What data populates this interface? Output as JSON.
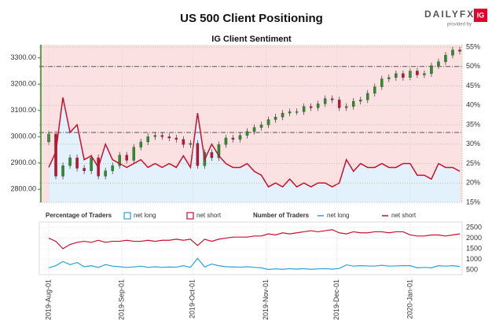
{
  "chart_data": [
    {
      "type": "candlestick",
      "title": "US 500 Client Positioning",
      "subtitle": "IG Client Sentiment",
      "logo": {
        "text": "DAILYFX",
        "badge": "IG",
        "tagline": "provided by"
      },
      "xlim": [
        "2019-07-28",
        "2020-01-23"
      ],
      "x": [
        "2019-08-01",
        "2019-08-04",
        "2019-08-07",
        "2019-08-10",
        "2019-08-13",
        "2019-08-16",
        "2019-08-19",
        "2019-08-22",
        "2019-08-25",
        "2019-08-28",
        "2019-08-31",
        "2019-09-03",
        "2019-09-06",
        "2019-09-09",
        "2019-09-12",
        "2019-09-15",
        "2019-09-18",
        "2019-09-21",
        "2019-09-24",
        "2019-09-27",
        "2019-09-30",
        "2019-10-03",
        "2019-10-06",
        "2019-10-09",
        "2019-10-12",
        "2019-10-15",
        "2019-10-18",
        "2019-10-21",
        "2019-10-24",
        "2019-10-27",
        "2019-10-30",
        "2019-11-02",
        "2019-11-05",
        "2019-11-08",
        "2019-11-11",
        "2019-11-14",
        "2019-11-17",
        "2019-11-20",
        "2019-11-23",
        "2019-11-26",
        "2019-11-29",
        "2019-12-02",
        "2019-12-05",
        "2019-12-08",
        "2019-12-11",
        "2019-12-14",
        "2019-12-17",
        "2019-12-20",
        "2019-12-23",
        "2019-12-26",
        "2019-12-29",
        "2020-01-01",
        "2020-01-04",
        "2020-01-07",
        "2020-01-10",
        "2020-01-13",
        "2020-01-16",
        "2020-01-19",
        "2020-01-22"
      ],
      "open": [
        2980,
        3010,
        2850,
        2890,
        2920,
        2880,
        2870,
        2920,
        2850,
        2870,
        2890,
        2930,
        2910,
        2960,
        2980,
        3000,
        3005,
        3000,
        2995,
        2990,
        2970,
        2975,
        2890,
        2940,
        2920,
        2970,
        2995,
        2990,
        3005,
        3020,
        3035,
        3045,
        3065,
        3075,
        3090,
        3095,
        3095,
        3115,
        3110,
        3125,
        3145,
        3140,
        3110,
        3115,
        3135,
        3140,
        3165,
        3190,
        3220,
        3225,
        3240,
        3225,
        3250,
        3235,
        3240,
        3270,
        3285,
        3310,
        3330
      ],
      "high": [
        3022,
        3022,
        2902,
        2932,
        2932,
        2892,
        2932,
        2932,
        2882,
        2902,
        2942,
        2942,
        2972,
        2992,
        3012,
        3017,
        3017,
        3012,
        3007,
        3002,
        2987,
        2987,
        2952,
        2952,
        2982,
        3007,
        3007,
        3017,
        3032,
        3047,
        3057,
        3077,
        3087,
        3102,
        3107,
        3107,
        3127,
        3127,
        3137,
        3157,
        3157,
        3152,
        3127,
        3147,
        3152,
        3177,
        3202,
        3232,
        3237,
        3252,
        3252,
        3262,
        3262,
        3252,
        3282,
        3297,
        3322,
        3342,
        3342
      ],
      "low": [
        2968,
        2838,
        2838,
        2878,
        2868,
        2858,
        2858,
        2838,
        2838,
        2858,
        2878,
        2898,
        2898,
        2948,
        2968,
        2988,
        2988,
        2983,
        2978,
        2958,
        2958,
        2878,
        2878,
        2908,
        2908,
        2958,
        2978,
        2978,
        2993,
        3008,
        3023,
        3033,
        3053,
        3063,
        3078,
        3083,
        3083,
        3098,
        3098,
        3113,
        3128,
        3098,
        3098,
        3103,
        3123,
        3128,
        3153,
        3178,
        3208,
        3213,
        3213,
        3213,
        3223,
        3223,
        3228,
        3258,
        3273,
        3298,
        3313
      ],
      "close": [
        3010,
        2850,
        2890,
        2920,
        2880,
        2870,
        2920,
        2850,
        2870,
        2890,
        2930,
        2910,
        2960,
        2980,
        3000,
        3005,
        3000,
        2995,
        2990,
        2970,
        2975,
        2890,
        2940,
        2920,
        2970,
        2995,
        2990,
        3005,
        3020,
        3035,
        3045,
        3065,
        3075,
        3090,
        3095,
        3095,
        3115,
        3110,
        3125,
        3145,
        3140,
        3110,
        3115,
        3135,
        3140,
        3165,
        3190,
        3220,
        3225,
        3240,
        3225,
        3250,
        3235,
        3240,
        3270,
        3285,
        3310,
        3330,
        3325
      ],
      "up_color": "#2a8f2a",
      "down_color": "#c8102e",
      "sentiment": {
        "color": "#c8102e",
        "values": [
          24,
          28,
          42,
          33,
          35,
          26,
          27,
          24,
          30,
          26,
          25,
          24,
          25,
          26,
          24,
          25,
          24,
          25,
          24,
          27,
          24,
          38,
          26,
          30,
          27,
          25,
          24,
          24,
          25,
          23,
          22,
          19,
          20,
          19,
          21,
          19,
          20,
          19,
          20,
          20,
          19,
          20,
          26,
          23,
          25,
          24,
          24,
          25,
          24,
          24,
          25,
          25,
          22,
          22,
          21,
          25,
          24,
          24,
          23
        ],
        "axis": "y2"
      },
      "areas": [
        {
          "name": "net long",
          "color": "#29a3d6",
          "fill": "#e2f1fb"
        },
        {
          "name": "net short",
          "color": "#c8102e",
          "fill": "#fbe1e1"
        }
      ],
      "reference_lines": [
        50,
        33
      ],
      "ylim": [
        2750,
        3350
      ],
      "yticks": [
        {
          "value": 2800,
          "label": "2800.00"
        },
        {
          "value": 2900,
          "label": "2900.00"
        },
        {
          "value": 3000,
          "label": "3000.00"
        },
        {
          "value": 3100,
          "label": "3100.00"
        },
        {
          "value": 3200,
          "label": "3200.00"
        },
        {
          "value": 3300,
          "label": "3300.00"
        }
      ],
      "y2lim": [
        15,
        55.6
      ],
      "y2ticks": [
        {
          "value": 15,
          "label": "15%"
        },
        {
          "value": 20,
          "label": "20%"
        },
        {
          "value": 25,
          "label": "25%"
        },
        {
          "value": 30,
          "label": "30%"
        },
        {
          "value": 35,
          "label": "35%"
        },
        {
          "value": 40,
          "label": "40%"
        },
        {
          "value": 45,
          "label": "45%"
        },
        {
          "value": 50,
          "label": "50%"
        },
        {
          "value": 55,
          "label": "55%"
        }
      ],
      "grid": true
    },
    {
      "type": "line",
      "legend_titles": {
        "percentage": "Percentage of Traders",
        "number": "Number of Traders"
      },
      "series": [
        {
          "name": "net long",
          "color": "#29a3d6",
          "values": [
            600,
            700,
            900,
            750,
            850,
            650,
            700,
            620,
            750,
            680,
            650,
            620,
            640,
            680,
            620,
            650,
            620,
            640,
            630,
            700,
            620,
            1050,
            640,
            780,
            700,
            650,
            640,
            630,
            650,
            620,
            600,
            520,
            550,
            530,
            560,
            540,
            560,
            530,
            550,
            560,
            540,
            570,
            740,
            680,
            700,
            690,
            680,
            720,
            680,
            690,
            700,
            700,
            600,
            620,
            600,
            700,
            680,
            700,
            660
          ]
        },
        {
          "name": "net short",
          "color": "#c8102e",
          "values": [
            2000,
            1850,
            1500,
            1700,
            1800,
            1850,
            1800,
            1900,
            1800,
            1850,
            1850,
            1900,
            1850,
            1850,
            1900,
            1850,
            1900,
            1900,
            1950,
            1900,
            1950,
            1650,
            1950,
            1850,
            1950,
            2000,
            2050,
            2050,
            2050,
            2100,
            2100,
            2200,
            2150,
            2250,
            2200,
            2250,
            2300,
            2350,
            2300,
            2350,
            2400,
            2250,
            2200,
            2300,
            2250,
            2250,
            2300,
            2300,
            2250,
            2300,
            2300,
            2150,
            2100,
            2100,
            2150,
            2150,
            2100,
            2150,
            2200
          ]
        }
      ],
      "ylim": [
        280,
        2760
      ],
      "yticks": [
        500,
        1000,
        1500,
        2000,
        2500
      ],
      "xticks": [
        {
          "value": "2019-08-01",
          "label": "2019-Aug-01"
        },
        {
          "value": "2019-09-01",
          "label": "2019-Sep-01"
        },
        {
          "value": "2019-10-01",
          "label": "2019-Oct-01"
        },
        {
          "value": "2019-11-01",
          "label": "2019-Nov-01"
        },
        {
          "value": "2019-12-01",
          "label": "2019-Dec-01"
        },
        {
          "value": "2020-01-01",
          "label": "2020-Jan-01"
        }
      ],
      "grid": true
    }
  ]
}
